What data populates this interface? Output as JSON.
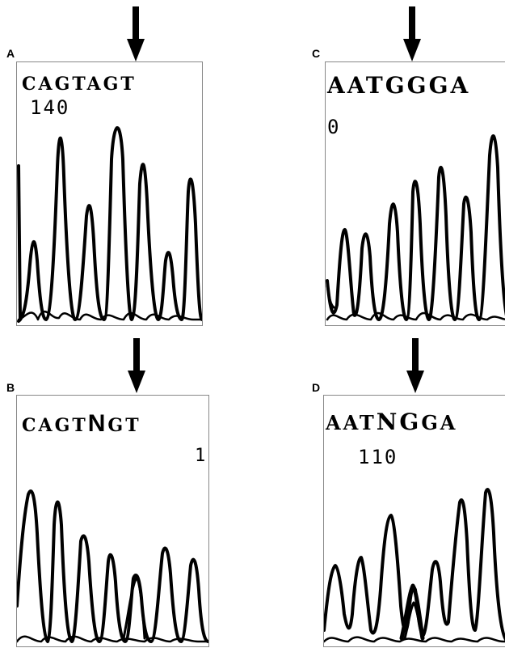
{
  "panels": {
    "A": {
      "letter": "A",
      "sequence": "CAGTAGT",
      "position": "140"
    },
    "B": {
      "letter": "B",
      "sequence_pre": "CAGT",
      "sequence_n": "N",
      "sequence_post": "GT",
      "position": "1"
    },
    "C": {
      "letter": "C",
      "sequence": "AATGGGA",
      "position": "0"
    },
    "D": {
      "letter": "D",
      "sequence_pre": "AAT",
      "sequence_n": "NG",
      "sequence_post": "GA",
      "position": "110"
    }
  },
  "colors": {
    "trace": "#000000",
    "frame": "#888888",
    "background": "#ffffff"
  },
  "icons": [
    "down-arrow-icon"
  ]
}
